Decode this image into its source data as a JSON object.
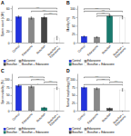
{
  "chart_data": [
    {
      "type": "bar",
      "title": "A",
      "y_label": "Sperm count (x10⁶)",
      "categories": [
        "Control",
        "Edaravone",
        "Busulfan",
        "Busulfan +\nEdaravone"
      ],
      "values": [
        45,
        43,
        44,
        8
      ],
      "errors": [
        2,
        2,
        2,
        3
      ],
      "colors": [
        "#2233dd",
        "#888888",
        "#444444",
        "#ffffff"
      ],
      "ylim": [
        0,
        65
      ],
      "yticks": [
        0,
        20,
        40,
        60
      ],
      "grid": false,
      "annotations": [
        {
          "x1": 0,
          "x2": 3,
          "y": 60,
          "label": "****"
        },
        {
          "x1": 1,
          "x2": 3,
          "y": 55,
          "label": "****"
        },
        {
          "x1": 2,
          "x2": 3,
          "y": 50,
          "label": "****"
        }
      ],
      "legend": "below",
      "legend_labels": [
        "Control",
        "Edaravone",
        "Busulfan",
        "Busulfan + Edaravone"
      ]
    },
    {
      "type": "bar",
      "title": "B",
      "y_label": "Motility (%)",
      "categories": [
        "Control",
        "Edaravone",
        "Busulfan",
        "Busulfan +\nEdaravone"
      ],
      "values": [
        18,
        16,
        78,
        74
      ],
      "errors": [
        2,
        2,
        3,
        4
      ],
      "colors": [
        "#2233dd",
        "#888888",
        "#1a7a6e",
        "#ffffff"
      ],
      "ylim": [
        0,
        110
      ],
      "yticks": [
        0,
        25,
        50,
        75,
        100
      ],
      "grid": false,
      "annotations": [
        {
          "x1": 0,
          "x2": 2,
          "y": 100,
          "label": "****"
        },
        {
          "x1": 0,
          "x2": 3,
          "y": 93,
          "label": "****"
        },
        {
          "x1": 1,
          "x2": 2,
          "y": 86,
          "label": "****"
        },
        {
          "x1": 1,
          "x2": 3,
          "y": 79,
          "label": "***"
        }
      ],
      "legend": "below",
      "legend_labels": [
        "Control",
        "Edaravone",
        "Busulfan",
        "Busulfan + Edaravone"
      ]
    },
    {
      "type": "bar",
      "title": "C",
      "y_label": "Sperm viability (%)",
      "categories": [
        "Control",
        "Edaravone",
        "Busulfan",
        "Busulfan +\nEdaravone"
      ],
      "values": [
        80,
        77,
        9,
        72
      ],
      "errors": [
        3,
        3,
        2,
        4
      ],
      "colors": [
        "#2233dd",
        "#888888",
        "#1a7a6e",
        "#ffffff"
      ],
      "ylim": [
        0,
        120
      ],
      "yticks": [
        0,
        25,
        50,
        75,
        100
      ],
      "grid": false,
      "annotations": [
        {
          "x1": 0,
          "x2": 2,
          "y": 108,
          "label": "****"
        },
        {
          "x1": 1,
          "x2": 2,
          "y": 100,
          "label": "****"
        },
        {
          "x1": 2,
          "x2": 3,
          "y": 92,
          "label": "****"
        },
        {
          "x1": 0,
          "x2": 3,
          "y": 84,
          "label": "*"
        }
      ],
      "legend": "below",
      "legend_labels": [
        "Control",
        "Edaravone",
        "Busulfan",
        "Busulfan + Edaravone"
      ]
    },
    {
      "type": "bar",
      "title": "D",
      "y_label": "Normal morphology (%)",
      "categories": [
        "Control",
        "Edaravone",
        "Busulfan",
        "Busulfan +\nEdaravone"
      ],
      "values": [
        74,
        71,
        7,
        67
      ],
      "errors": [
        3,
        3,
        2,
        4
      ],
      "colors": [
        "#2233dd",
        "#888888",
        "#444444",
        "#ffffff"
      ],
      "ylim": [
        0,
        120
      ],
      "yticks": [
        0,
        25,
        50,
        75,
        100
      ],
      "grid": false,
      "annotations": [
        {
          "x1": 0,
          "x2": 2,
          "y": 108,
          "label": "****"
        },
        {
          "x1": 1,
          "x2": 2,
          "y": 100,
          "label": "****"
        },
        {
          "x1": 2,
          "x2": 3,
          "y": 92,
          "label": "****"
        },
        {
          "x1": 0,
          "x2": 3,
          "y": 84,
          "label": "*"
        }
      ],
      "legend": "below",
      "legend_labels": [
        "Control",
        "Edaravone",
        "Busulfan",
        "Busulfan + Edaravone"
      ]
    }
  ]
}
